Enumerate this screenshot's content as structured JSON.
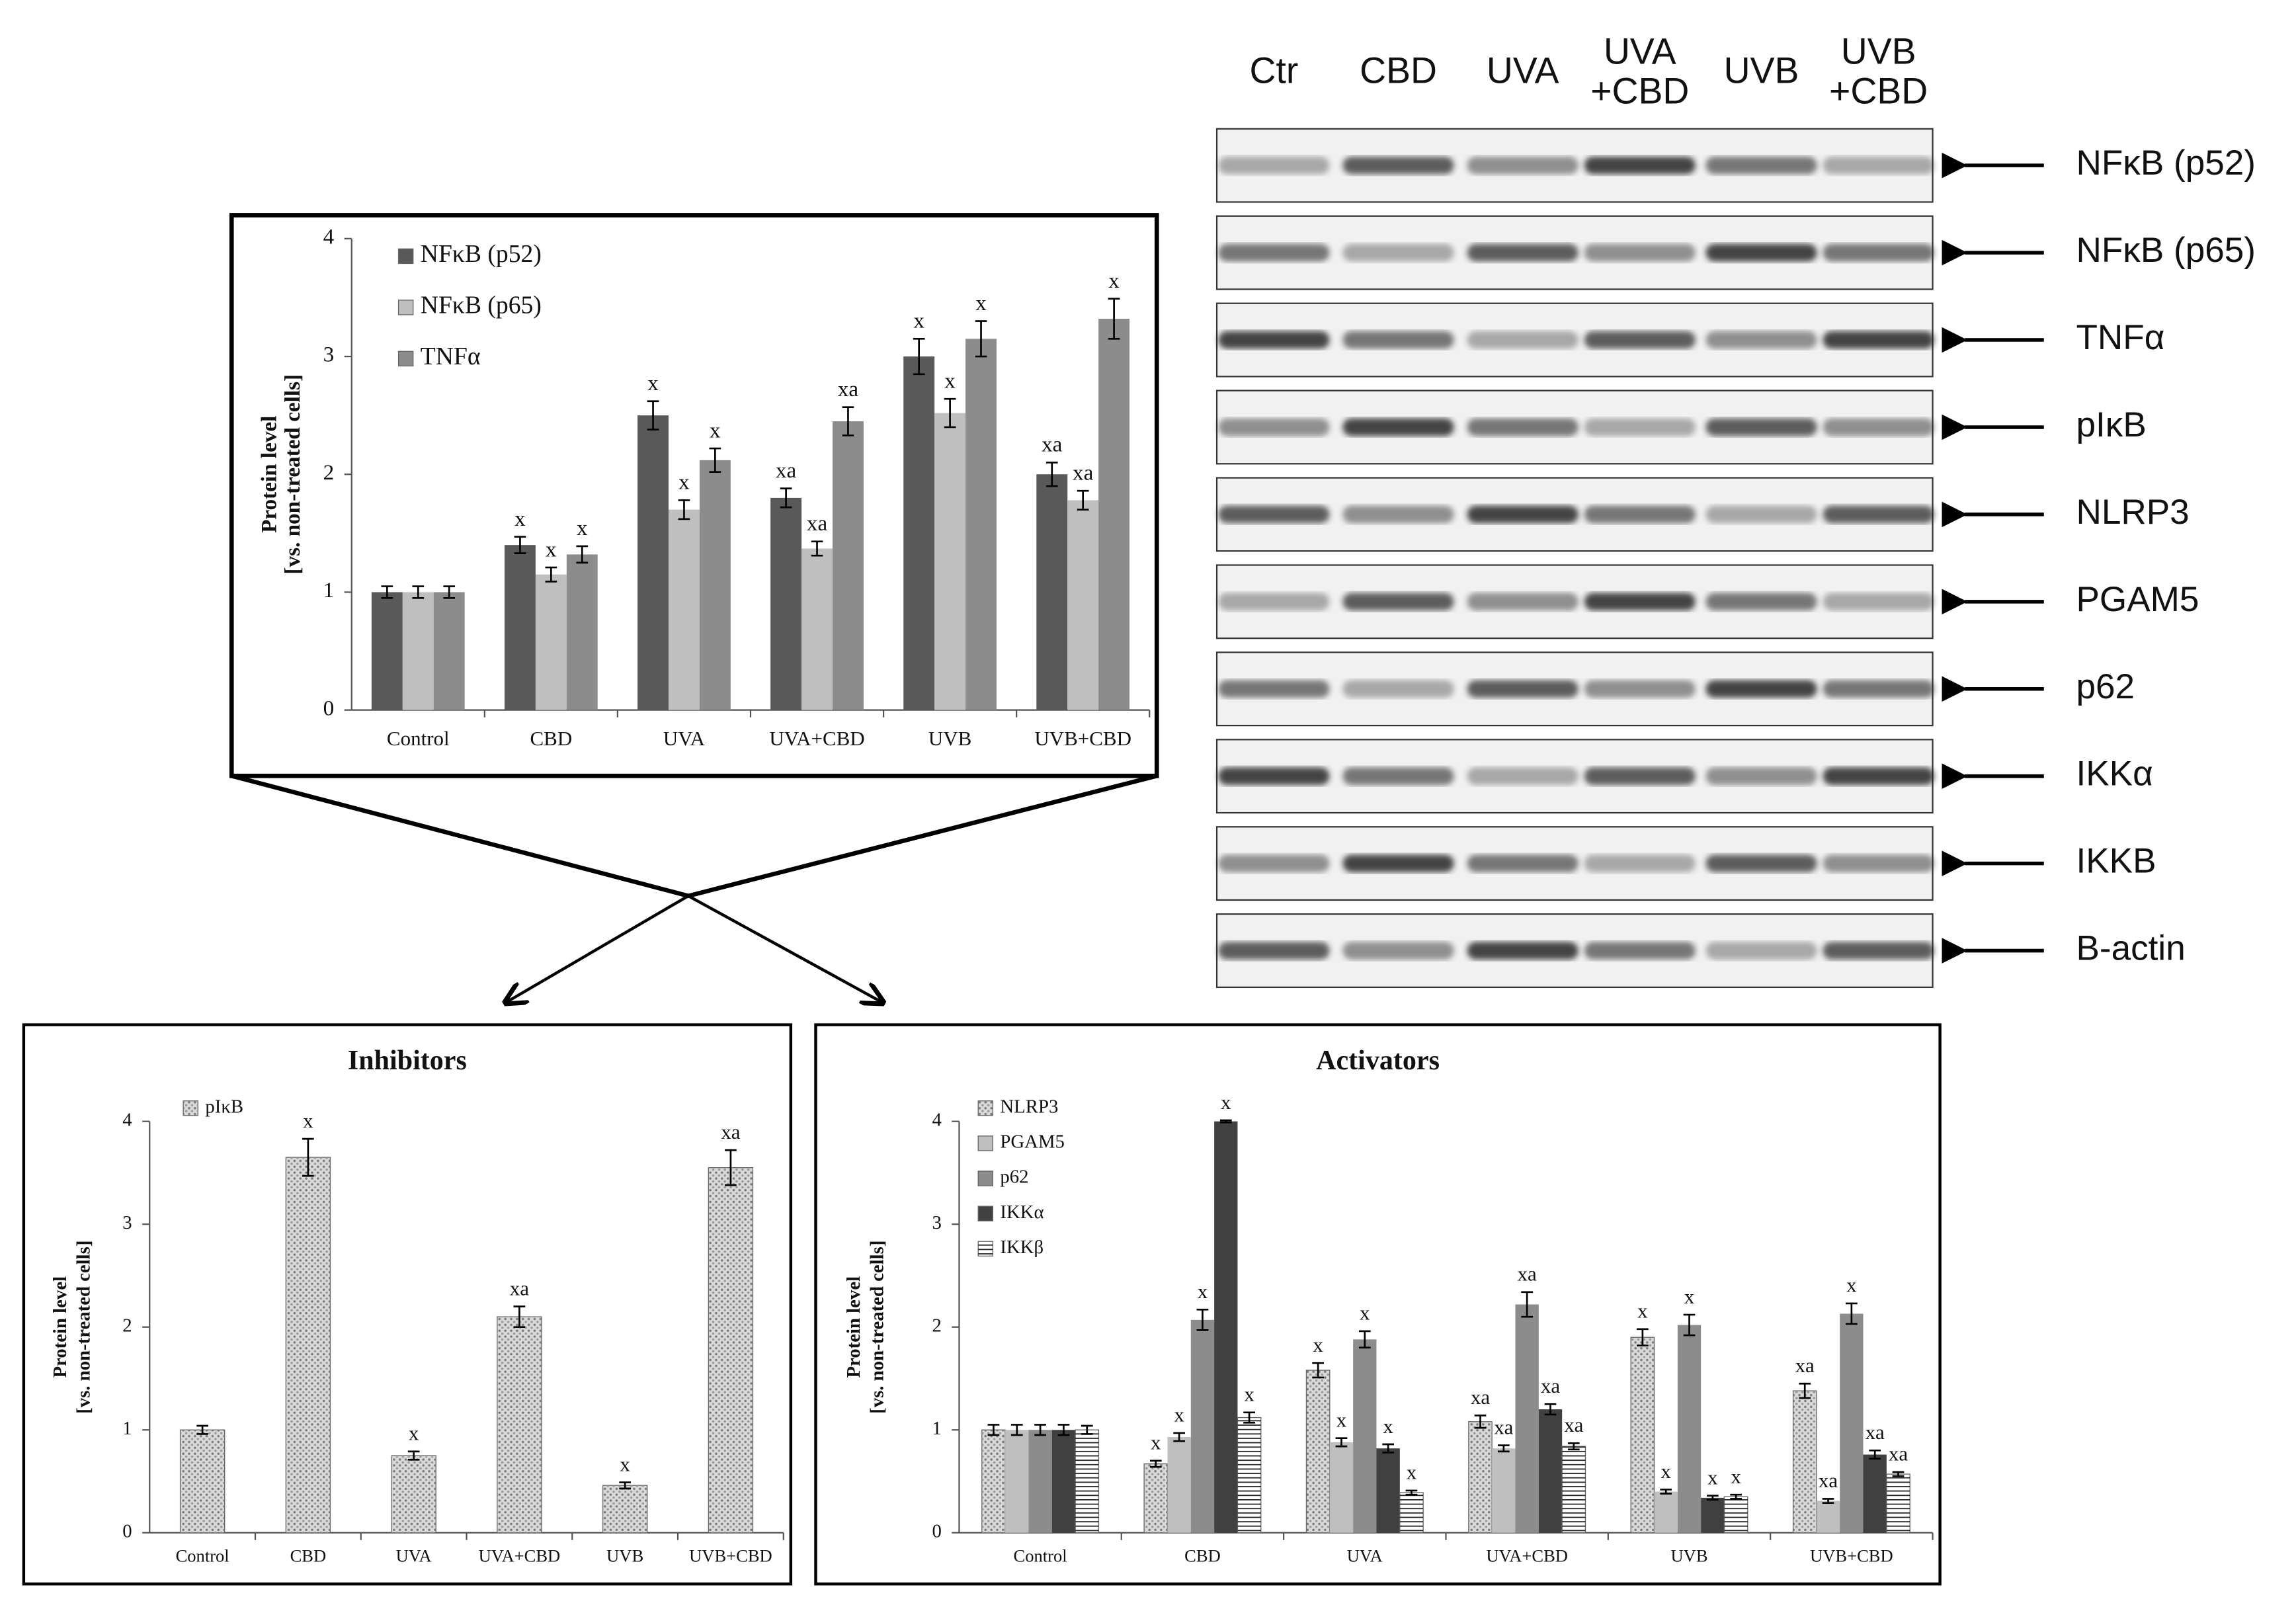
{
  "chart_data": [
    {
      "type": "bar",
      "ylabel": [
        "Protein level",
        "[vs. non-treated cells]"
      ],
      "categories": [
        "Control",
        "CBD",
        "UVA",
        "UVA+CBD",
        "UVB",
        "UVB+CBD"
      ],
      "ylim": [
        0,
        4
      ],
      "yticks": [
        0,
        1,
        2,
        3,
        4
      ],
      "legend": "upper left",
      "series": [
        {
          "name": "NFκB (p52)",
          "color": "#595959",
          "pattern": null,
          "values": [
            1,
            1.4,
            2.5,
            1.8,
            3.0,
            2.0
          ],
          "errors": [
            0.05,
            0.07,
            0.12,
            0.08,
            0.15,
            0.1
          ],
          "annotations": [
            null,
            "x",
            "x",
            "xa",
            "x",
            "xa"
          ]
        },
        {
          "name": "NFκB (p65)",
          "color": "#bfbfbf",
          "pattern": null,
          "values": [
            1,
            1.15,
            1.7,
            1.37,
            2.52,
            1.78
          ],
          "errors": [
            0.05,
            0.06,
            0.08,
            0.06,
            0.12,
            0.08
          ],
          "annotations": [
            null,
            "x",
            "x",
            "xa",
            "x",
            "xa"
          ]
        },
        {
          "name": "TNFα",
          "color": "#8c8c8c",
          "pattern": null,
          "values": [
            1,
            1.32,
            2.12,
            2.45,
            3.15,
            3.32
          ],
          "errors": [
            0.05,
            0.07,
            0.1,
            0.12,
            0.15,
            0.17
          ],
          "annotations": [
            null,
            "x",
            "x",
            "xa",
            "x",
            "x"
          ]
        }
      ]
    },
    {
      "type": "bar",
      "title": "Inhibitors",
      "ylabel": [
        "Protein level",
        "[vs. non-treated cells]"
      ],
      "categories": [
        "Control",
        "CBD",
        "UVA",
        "UVA+CBD",
        "UVB",
        "UVB+CBD"
      ],
      "ylim": [
        0,
        4
      ],
      "yticks": [
        0,
        1,
        2,
        3,
        4
      ],
      "legend": "upper left",
      "series": [
        {
          "name": "pIκB",
          "color": "#d9d9d9",
          "pattern": "dots",
          "values": [
            1,
            3.65,
            0.75,
            2.1,
            0.46,
            3.55
          ],
          "errors": [
            0.04,
            0.18,
            0.04,
            0.1,
            0.03,
            0.17
          ],
          "annotations": [
            null,
            "x",
            "x",
            "xa",
            "x",
            "xa"
          ]
        }
      ]
    },
    {
      "type": "bar",
      "title": "Activators",
      "ylabel": [
        "Protein level",
        "[vs. non-treated cells]"
      ],
      "categories": [
        "Control",
        "CBD",
        "UVA",
        "UVA+CBD",
        "UVB",
        "UVB+CBD"
      ],
      "ylim": [
        0,
        4
      ],
      "yticks": [
        0,
        1,
        2,
        3,
        4
      ],
      "legend": "upper left",
      "series": [
        {
          "name": "NLRP3",
          "color": "#d9d9d9",
          "pattern": "dots",
          "values": [
            1,
            0.67,
            1.58,
            1.08,
            1.9,
            1.38
          ],
          "errors": [
            0.05,
            0.03,
            0.07,
            0.06,
            0.08,
            0.07
          ],
          "annotations": [
            null,
            "x",
            "x",
            "xa",
            "x",
            "xa"
          ]
        },
        {
          "name": "PGAM5",
          "color": "#bfbfbf",
          "pattern": null,
          "values": [
            1,
            0.93,
            0.88,
            0.82,
            0.4,
            0.31
          ],
          "errors": [
            0.05,
            0.04,
            0.04,
            0.03,
            0.02,
            0.02
          ],
          "annotations": [
            null,
            "x",
            "x",
            "xa",
            "x",
            "xa"
          ]
        },
        {
          "name": "p62",
          "color": "#8c8c8c",
          "pattern": null,
          "values": [
            1,
            2.07,
            1.88,
            2.22,
            2.02,
            2.13
          ],
          "errors": [
            0.05,
            0.1,
            0.08,
            0.12,
            0.1,
            0.1
          ],
          "annotations": [
            null,
            "x",
            "x",
            "xa",
            "x",
            "x"
          ]
        },
        {
          "name": "IKKα",
          "color": "#404040",
          "pattern": null,
          "values": [
            1,
            4.0,
            0.82,
            1.2,
            0.34,
            0.76
          ],
          "errors": [
            0.05,
            0.01,
            0.04,
            0.05,
            0.02,
            0.04
          ],
          "annotations": [
            null,
            "x",
            "x",
            "xa",
            "x",
            "xa"
          ]
        },
        {
          "name": "IKKβ",
          "color": "#ffffff",
          "pattern": "hlines",
          "values": [
            1,
            1.12,
            0.39,
            0.84,
            0.35,
            0.57
          ],
          "errors": [
            0.04,
            0.05,
            0.02,
            0.03,
            0.02,
            0.02
          ],
          "annotations": [
            null,
            "x",
            "x",
            "xa",
            "x",
            "xa"
          ]
        }
      ]
    }
  ],
  "blot": {
    "lanes": [
      [
        "Ctr"
      ],
      [
        "CBD"
      ],
      [
        "UVA"
      ],
      [
        "UVA",
        "+CBD"
      ],
      [
        "UVB"
      ],
      [
        "UVB",
        "+CBD"
      ]
    ],
    "proteins": [
      "NFκB (p52)",
      "NFκB (p65)",
      "TNFα",
      "pIκB",
      "NLRP3",
      "PGAM5",
      "p62",
      "IKKα",
      "IKKB",
      "B-actin"
    ]
  }
}
